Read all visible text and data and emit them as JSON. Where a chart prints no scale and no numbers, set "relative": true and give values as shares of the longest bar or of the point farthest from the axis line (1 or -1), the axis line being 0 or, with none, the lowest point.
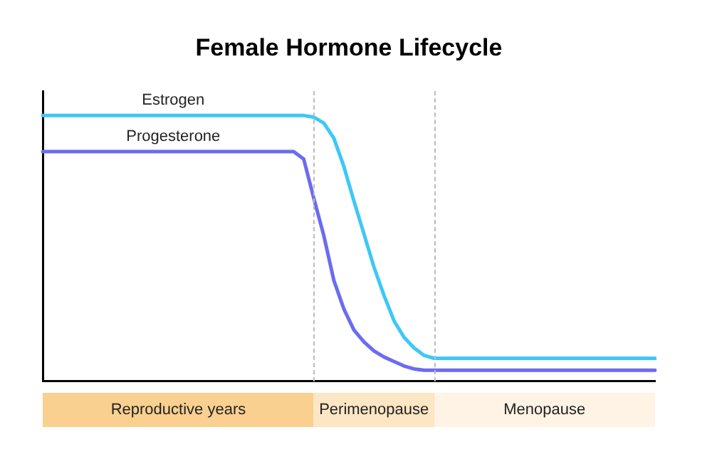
{
  "chart_data": {
    "type": "line",
    "title": "Female Hormone Lifecycle",
    "relative": true,
    "grid": false,
    "legend": false,
    "marker": "none",
    "line_style": "solid",
    "categories": [
      null,
      null,
      null,
      null,
      null,
      null,
      null,
      null,
      null,
      null,
      null,
      null,
      null,
      null,
      null,
      null,
      null,
      null,
      null,
      null,
      null,
      null,
      null,
      null,
      null,
      null,
      null,
      null,
      null,
      null,
      null,
      null,
      null,
      null,
      null,
      null,
      null,
      null,
      null,
      null,
      null,
      null,
      null,
      null,
      null,
      null,
      null,
      null,
      null,
      null,
      null,
      null,
      null,
      null,
      null,
      null,
      null,
      null,
      null,
      null,
      null,
      null
    ],
    "series": [
      {
        "name": "Estrogen",
        "color": "#3ec8f5",
        "values": [
          1,
          1,
          1,
          1,
          1,
          1,
          1,
          1,
          1,
          1,
          1,
          1,
          1,
          1,
          1,
          1,
          1,
          1,
          1,
          1,
          1,
          1,
          1,
          1,
          1,
          1,
          1,
          0.994,
          0.972,
          0.915,
          0.808,
          0.678,
          0.554,
          0.429,
          0.322,
          0.226,
          0.164,
          0.124,
          0.096,
          0.085,
          0.085,
          0.085,
          0.085,
          0.085,
          0.085,
          0.085,
          0.085,
          0.085,
          0.085,
          0.085,
          0.085,
          0.085,
          0.085,
          0.085,
          0.085,
          0.085,
          0.085,
          0.085,
          0.085,
          0.085,
          0.085,
          0.085
        ]
      },
      {
        "name": "Progesterone",
        "color": "#6b6cf0",
        "values": [
          0.864,
          0.864,
          0.864,
          0.864,
          0.864,
          0.864,
          0.864,
          0.864,
          0.864,
          0.864,
          0.864,
          0.864,
          0.864,
          0.864,
          0.864,
          0.864,
          0.864,
          0.864,
          0.864,
          0.864,
          0.864,
          0.864,
          0.864,
          0.864,
          0.864,
          0.864,
          0.836,
          0.689,
          0.548,
          0.379,
          0.271,
          0.192,
          0.147,
          0.113,
          0.09,
          0.073,
          0.056,
          0.045,
          0.04,
          0.04,
          0.04,
          0.04,
          0.04,
          0.04,
          0.04,
          0.04,
          0.04,
          0.04,
          0.04,
          0.04,
          0.04,
          0.04,
          0.04,
          0.04,
          0.04,
          0.04,
          0.04,
          0.04,
          0.04,
          0.04,
          0.04,
          0.04
        ]
      }
    ],
    "annotations": [
      "Reproductive years",
      "Perimenopause",
      "Menopause"
    ]
  }
}
